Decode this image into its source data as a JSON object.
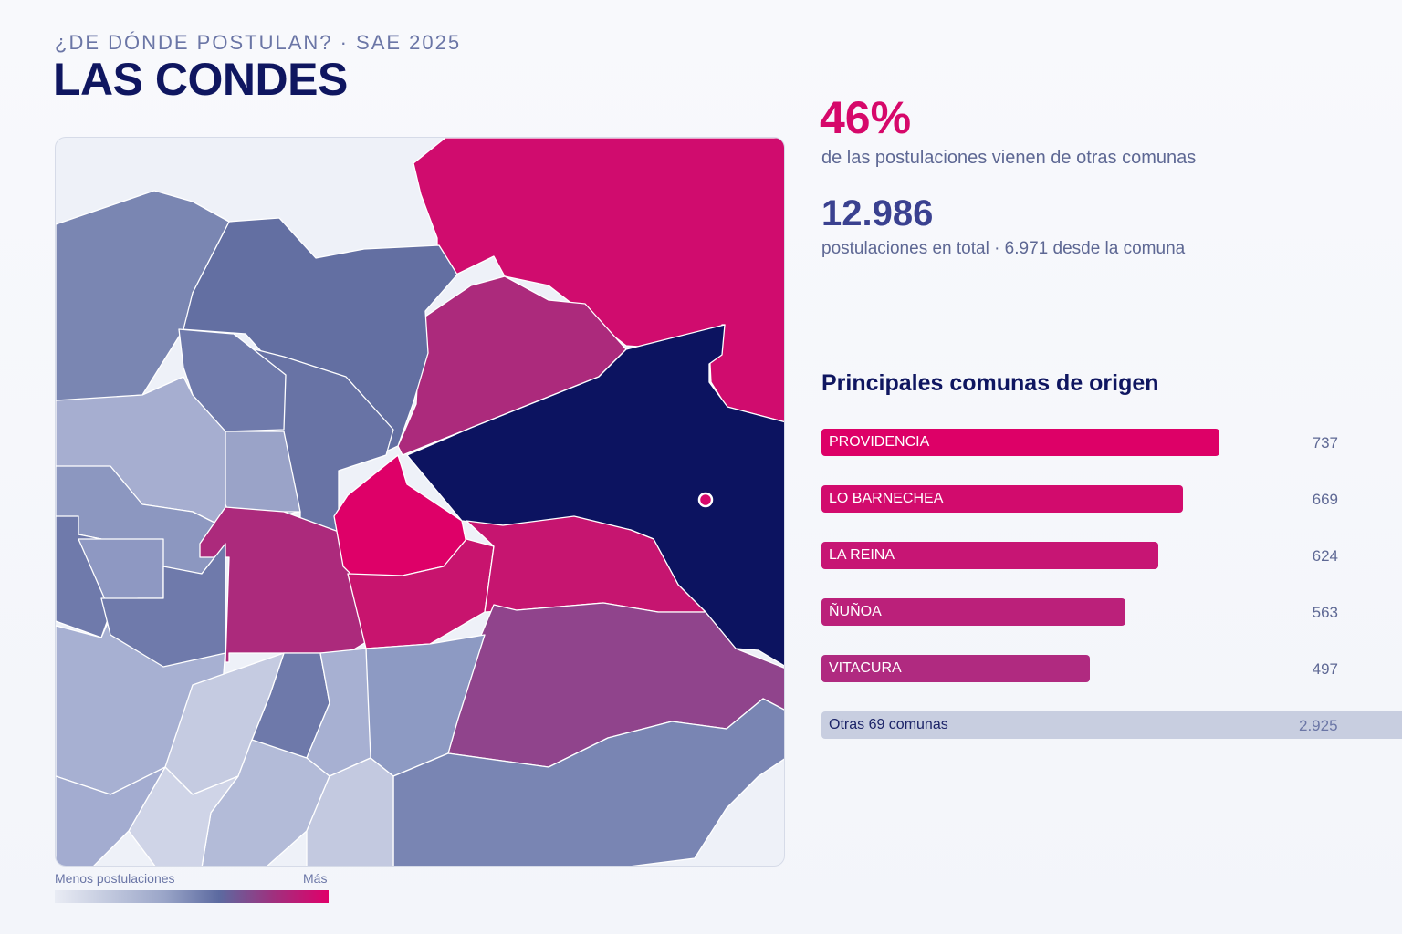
{
  "header": {
    "subtitle": "¿DE DÓNDE POSTULAN? · SAE 2025",
    "title": "LAS CONDES"
  },
  "kpis": {
    "share_value": "46%",
    "share_label": "de las postulaciones vienen de otras comunas",
    "total_value": "12.986",
    "total_label": "postulaciones en total · 6.971 desde la comuna"
  },
  "legend": {
    "min_label": "Menos postulaciones",
    "max_label": "Más"
  },
  "colors": {
    "title": "#0f1660",
    "accent": "#d6086a",
    "selected_commune": "#0c1360",
    "bar_high": "#dd0067",
    "bar_low": "#b02a80",
    "other_bar": "#c8cee0"
  },
  "chart_data": {
    "type": "bar",
    "title": "Principales comunas de origen",
    "orientation": "horizontal",
    "categories": [
      "PROVIDENCIA",
      "LO BARNECHEA",
      "LA REINA",
      "ÑUÑOA",
      "VITACURA"
    ],
    "values": [
      737,
      669,
      624,
      563,
      497
    ],
    "value_labels": [
      "737",
      "669",
      "624",
      "563",
      "497"
    ],
    "other": {
      "label": "Otras 69 comunas",
      "value": 2925,
      "value_label": "2.925"
    },
    "xlim": [
      0,
      1000
    ]
  }
}
